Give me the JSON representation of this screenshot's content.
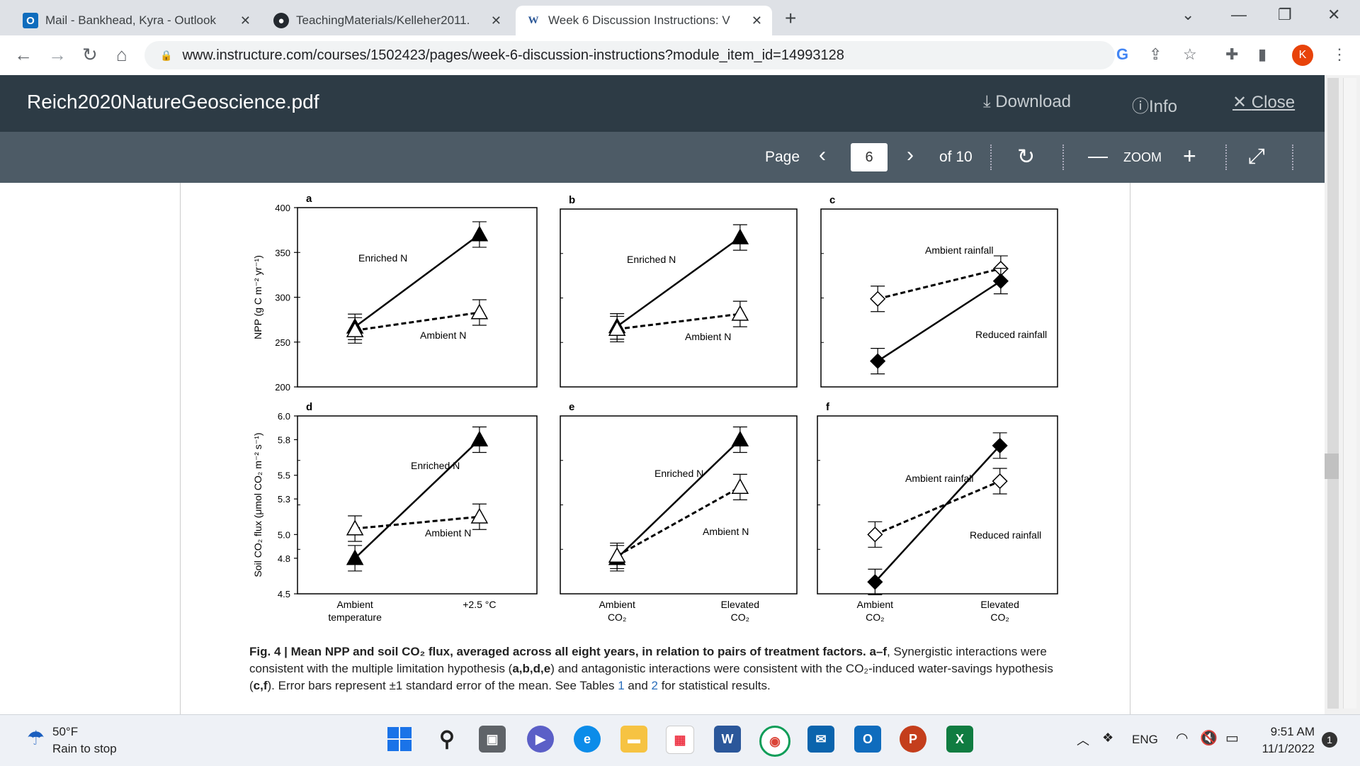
{
  "tabs": [
    {
      "title": "Mail - Bankhead, Kyra - Outlook",
      "icon": "outlook-icon"
    },
    {
      "title": "TeachingMaterials/Kelleher2011.",
      "icon": "github-icon"
    },
    {
      "title": "Week 6 Discussion Instructions: V",
      "icon": "word-icon"
    }
  ],
  "address": {
    "url": "www.instructure.com/courses/1502423/pages/week-6-discussion-instructions?module_item_id=14993128"
  },
  "profile_initial": "K",
  "pdf": {
    "filename": "Reich2020NatureGeoscience.pdf",
    "download": "Download",
    "info": "Info",
    "close": "Close",
    "page_label": "Page",
    "page_value": "6",
    "of_pages": "of 10",
    "zoom_label": "ZOOM"
  },
  "figure": {
    "caption_bold": "Fig. 4 | Mean NPP and soil CO₂ flux, averaged across all eight years, in relation to pairs of treatment factors. a–f",
    "caption_rest1": ", Synergistic interactions were consistent with the multiple limitation hypothesis (",
    "caption_abde": "a,b,d,e",
    "caption_rest2": ") and antagonistic interactions were consistent with the CO₂-induced water-savings hypothesis (",
    "caption_cf": "c,f",
    "caption_rest3": "). Error bars represent ±1 standard error of the mean. See Tables ",
    "caption_t1": "1",
    "caption_and": " and ",
    "caption_t2": "2",
    "caption_rest4": " for statistical results."
  },
  "chart_data": [
    {
      "type": "line",
      "panel": "a",
      "ylabel": "NPP (g C m⁻² yr⁻¹)",
      "ylim": [
        200,
        400
      ],
      "yticks": [
        200,
        250,
        300,
        350,
        400
      ],
      "x": [
        "Ambient temperature",
        "+2.5 °C"
      ],
      "series": [
        {
          "name": "Enriched N",
          "values": [
            267,
            370
          ]
        },
        {
          "name": "Ambient N",
          "values": [
            263,
            283
          ]
        }
      ]
    },
    {
      "type": "line",
      "panel": "b",
      "ylim": [
        200,
        400
      ],
      "x": [
        "Ambient CO₂",
        "Elevated CO₂"
      ],
      "series": [
        {
          "name": "Enriched N",
          "values": [
            268,
            368
          ]
        },
        {
          "name": "Ambient N",
          "values": [
            265,
            282
          ]
        }
      ]
    },
    {
      "type": "line",
      "panel": "c",
      "ylim": [
        200,
        400
      ],
      "x": [
        "Ambient CO₂",
        "Elevated CO₂"
      ],
      "series": [
        {
          "name": "Ambient rainfall",
          "values": [
            299,
            333
          ]
        },
        {
          "name": "Reduced rainfall",
          "values": [
            229,
            319
          ]
        }
      ]
    },
    {
      "type": "line",
      "panel": "d",
      "ylabel": "Soil CO₂ flux (μmol CO₂ m⁻² s⁻¹)",
      "ylim": [
        4.5,
        6.0
      ],
      "yticks": [
        4.5,
        4.8,
        5.0,
        5.3,
        5.5,
        5.8,
        6.0
      ],
      "x": [
        "Ambient temperature",
        "+2.5 °C"
      ],
      "series": [
        {
          "name": "Enriched N",
          "values": [
            4.8,
            5.8
          ]
        },
        {
          "name": "Ambient N",
          "values": [
            5.05,
            5.15
          ]
        }
      ]
    },
    {
      "type": "line",
      "panel": "e",
      "ylim": [
        4.5,
        6.0
      ],
      "x": [
        "Ambient CO₂",
        "Elevated CO₂"
      ],
      "series": [
        {
          "name": "Enriched N",
          "values": [
            4.8,
            5.8
          ]
        },
        {
          "name": "Ambient N",
          "values": [
            4.82,
            5.4
          ]
        }
      ]
    },
    {
      "type": "line",
      "panel": "f",
      "ylim": [
        4.5,
        6.0
      ],
      "x": [
        "Ambient CO₂",
        "Elevated CO₂"
      ],
      "series": [
        {
          "name": "Ambient rainfall",
          "values": [
            5.0,
            5.45
          ]
        },
        {
          "name": "Reduced rainfall",
          "values": [
            4.6,
            5.75
          ]
        }
      ]
    }
  ],
  "figure_text": {
    "tick_ambient": "Ambient",
    "tick_temperature": "temperature",
    "tick_warm": "+2.5 °C",
    "tick_elevated": "Elevated",
    "tick_co2": "CO₂"
  },
  "weather": {
    "temp": "50°F",
    "desc": "Rain to stop"
  },
  "tray": {
    "lang": "ENG",
    "time": "9:51 AM",
    "date": "11/1/2022",
    "notif": "1"
  }
}
